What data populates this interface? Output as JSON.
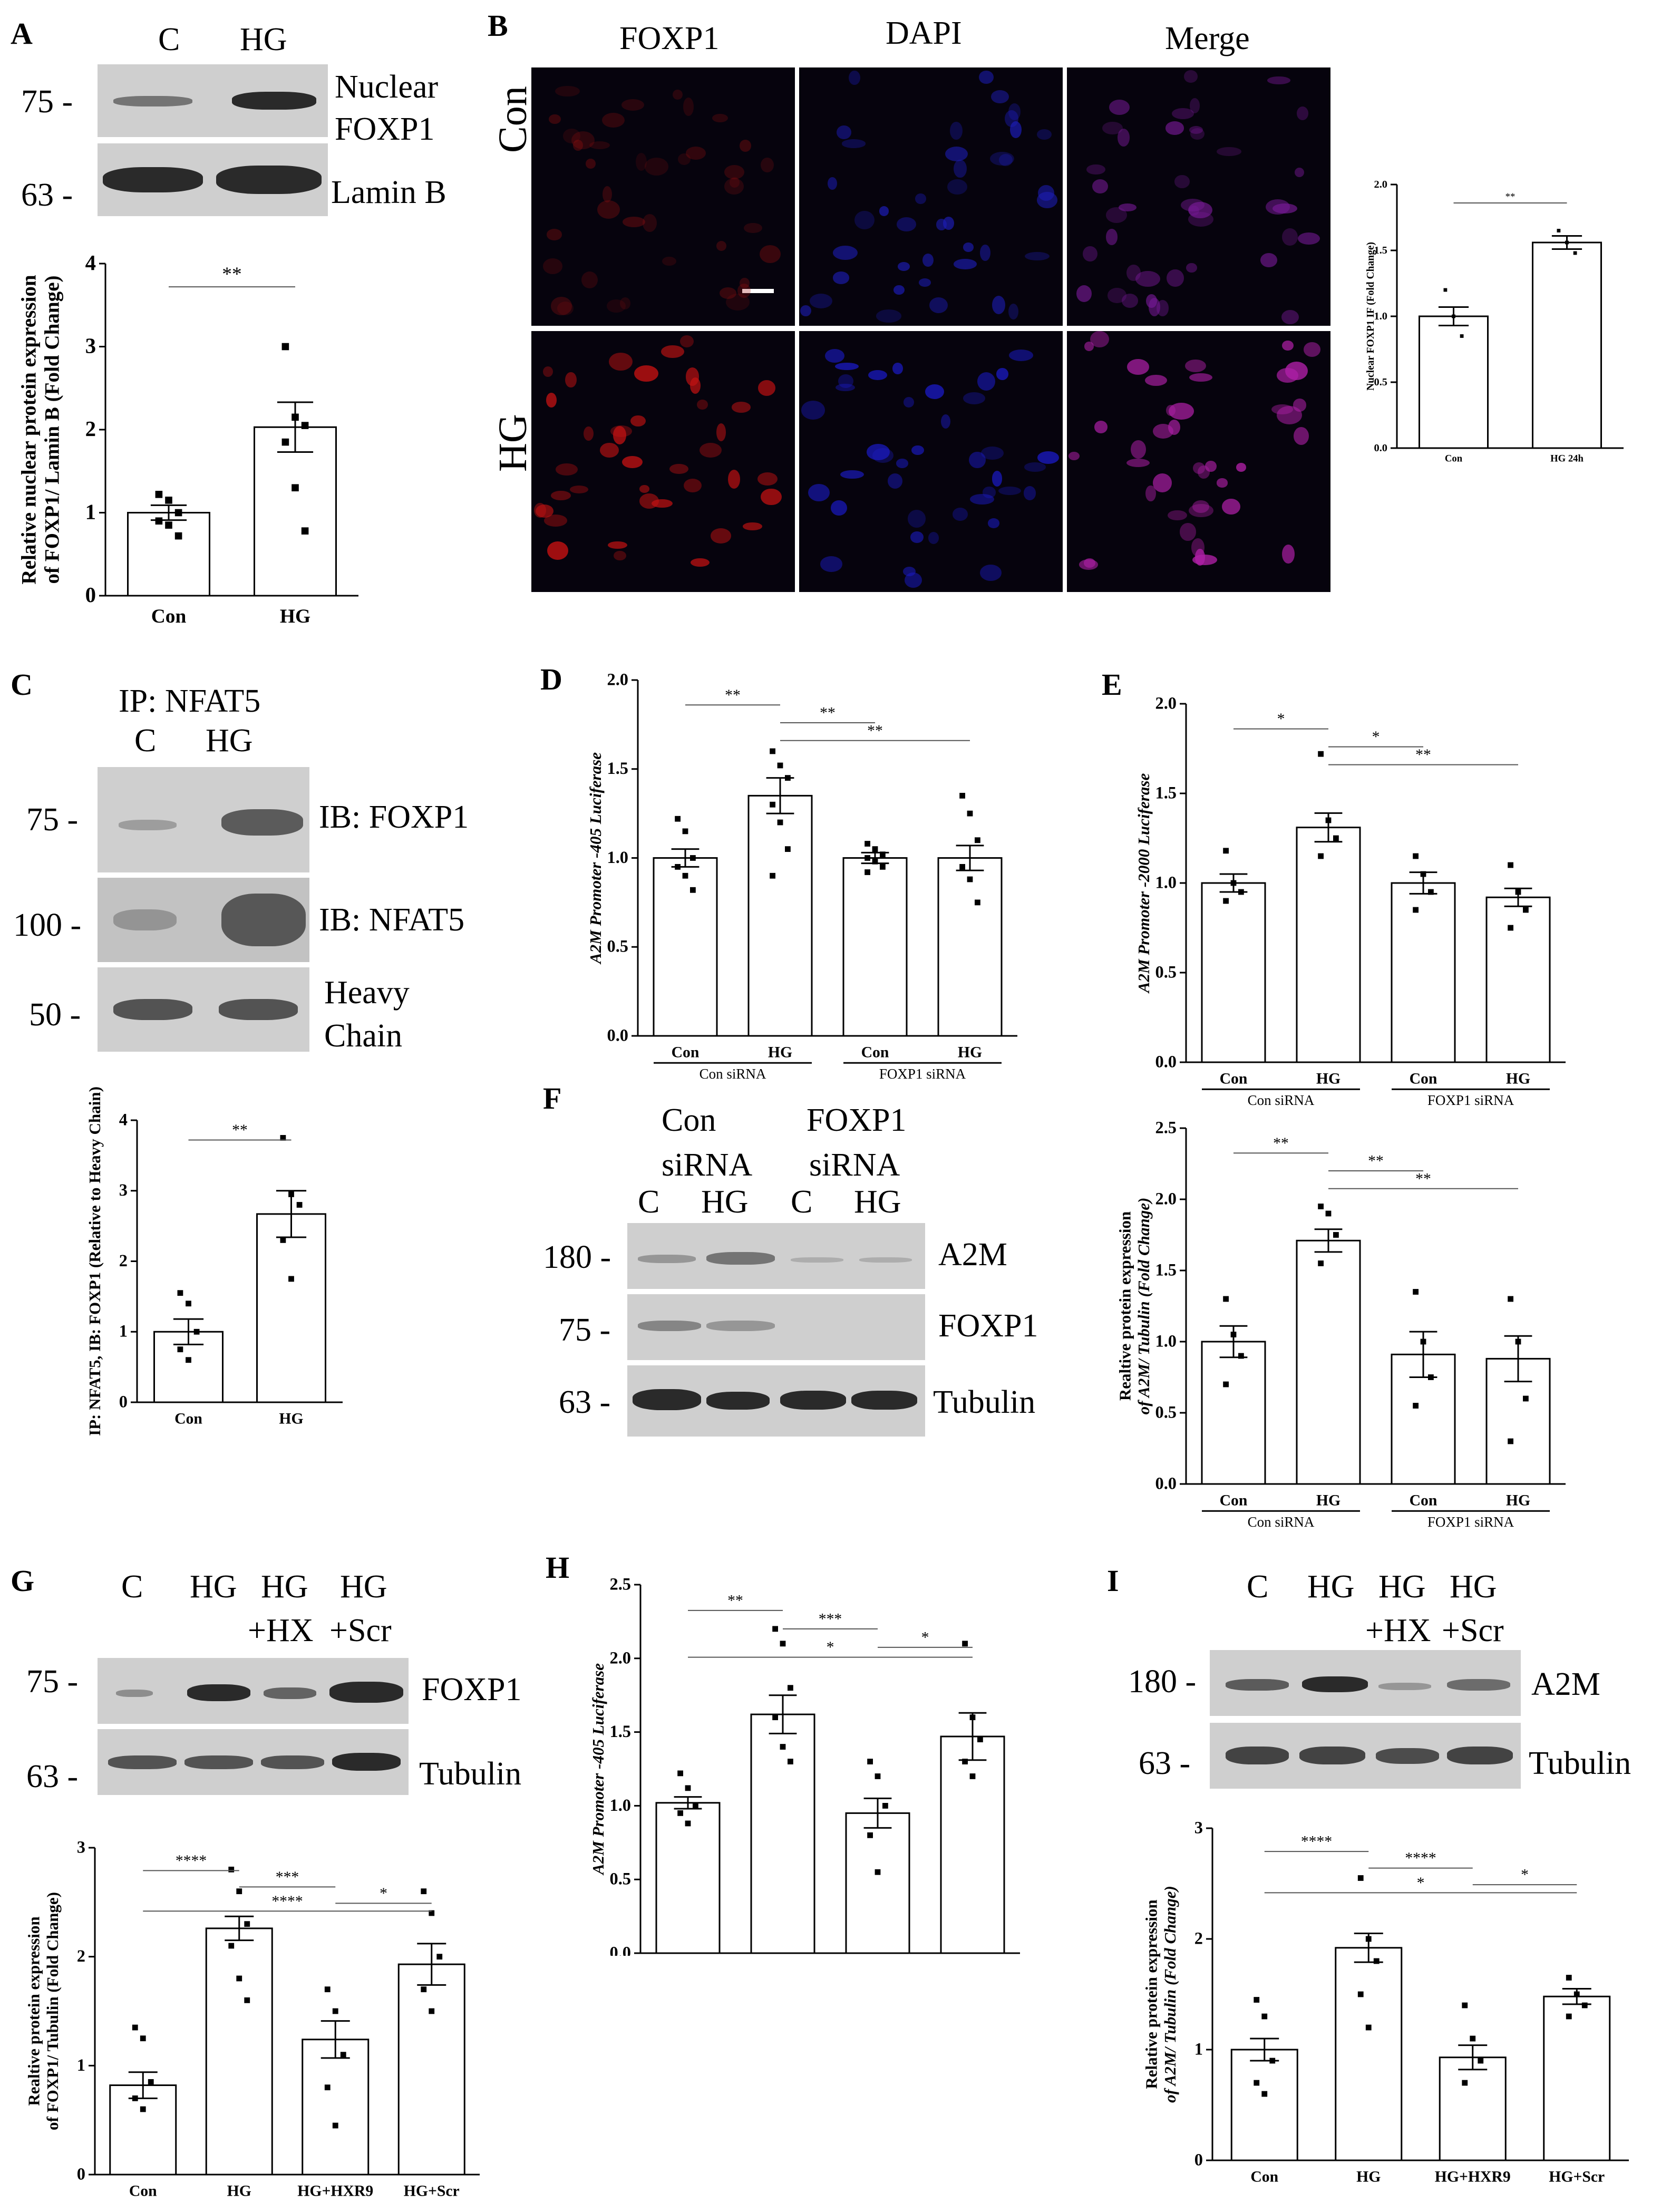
{
  "A": {
    "letter": "A",
    "lanes": [
      "C",
      "HG"
    ],
    "mw": [
      "75 -",
      "63 -"
    ],
    "labels": [
      "Nuclear",
      "FOXP1",
      "Lamin B"
    ],
    "chart_data": {
      "type": "bar",
      "categories": [
        "Con",
        "HG"
      ],
      "values": [
        1.0,
        2.03
      ],
      "sem": [
        0.09,
        0.3
      ],
      "points": [
        [
          1.22,
          1.15,
          1.0,
          0.9,
          0.85,
          0.72
        ],
        [
          3.0,
          2.15,
          2.05,
          1.85,
          1.3,
          0.78
        ]
      ],
      "ylabel": [
        "Relative nuclear protein expression",
        "of FOXP1/ Lamin B (Fold Change)"
      ],
      "ylim": [
        0,
        4
      ],
      "yticks": [
        "0",
        "1",
        "2",
        "3",
        "4"
      ],
      "sig": [
        {
          "from": 0,
          "to": 1,
          "label": "**"
        }
      ]
    }
  },
  "B": {
    "letter": "B",
    "columns": [
      "FOXP1",
      "DAPI",
      "Merge"
    ],
    "rows": [
      "Con",
      "HG"
    ],
    "chart_data": {
      "type": "bar",
      "categories": [
        "Con",
        "HG 24h"
      ],
      "values": [
        1.0,
        1.56
      ],
      "sem": [
        0.07,
        0.05
      ],
      "points": [
        [
          1.2,
          1.0,
          0.85
        ],
        [
          1.65,
          1.56,
          1.48
        ]
      ],
      "ylabel": [
        "Nuclear FOXP1 IF (Fold Change)"
      ],
      "ylim": [
        0,
        2.0
      ],
      "yticks": [
        "0.0",
        "0.5",
        "1.0",
        "1.5",
        "2.0"
      ],
      "sig": [
        {
          "from": 0,
          "to": 1,
          "label": "**"
        }
      ]
    }
  },
  "C": {
    "letter": "C",
    "ip": "IP: NFAT5",
    "lanes": [
      "C",
      "HG"
    ],
    "mw": [
      "75 -",
      "100 -",
      "50 -"
    ],
    "labels": [
      "IB: FOXP1",
      "IB: NFAT5",
      "Heavy",
      "Chain"
    ],
    "chart_data": {
      "type": "bar",
      "categories": [
        "Con",
        "HG"
      ],
      "values": [
        1.0,
        2.67
      ],
      "sem": [
        0.18,
        0.33
      ],
      "points": [
        [
          1.55,
          1.4,
          1.0,
          0.75,
          0.6
        ],
        [
          3.75,
          2.95,
          2.8,
          2.3,
          1.75
        ]
      ],
      "ylabel": [
        "IP: NFAT5, IB: FOXP1 (Relative to Heavy  Chain)"
      ],
      "ylim": [
        0,
        4
      ],
      "yticks": [
        "0",
        "1",
        "2",
        "3",
        "4"
      ],
      "sig": [
        {
          "from": 0,
          "to": 1,
          "label": "**"
        }
      ]
    }
  },
  "D": {
    "letter": "D",
    "chart_data": {
      "type": "bar",
      "categories": [
        "Con",
        "HG",
        "Con",
        "HG"
      ],
      "groups": [
        "Con siRNA",
        "FOXP1 siRNA"
      ],
      "values": [
        1.0,
        1.35,
        1.0,
        1.0
      ],
      "sem": [
        0.05,
        0.1,
        0.03,
        0.07
      ],
      "points": [
        [
          1.22,
          1.15,
          1.0,
          0.95,
          0.9,
          0.82
        ],
        [
          1.6,
          1.52,
          1.45,
          1.3,
          1.2,
          1.05,
          0.9
        ],
        [
          1.08,
          1.05,
          1.02,
          1.0,
          0.98,
          0.95,
          0.92
        ],
        [
          1.35,
          1.25,
          1.1,
          0.95,
          0.88,
          0.75
        ]
      ],
      "ylabel": [
        "A2M Promoter -405 Luciferase"
      ],
      "ylim": [
        0,
        2.0
      ],
      "yticks": [
        "0.0",
        "0.5",
        "1.0",
        "1.5",
        "2.0"
      ],
      "sig": [
        {
          "from": 0,
          "to": 1,
          "label": "**"
        },
        {
          "from": 1,
          "to": 2,
          "label": "**"
        },
        {
          "from": 1,
          "to": 3,
          "label": "**"
        }
      ]
    }
  },
  "E": {
    "letter": "E",
    "chart_data": {
      "type": "bar",
      "categories": [
        "Con",
        "HG",
        "Con",
        "HG"
      ],
      "groups": [
        "Con siRNA",
        "FOXP1 siRNA"
      ],
      "values": [
        1.0,
        1.31,
        1.0,
        0.92
      ],
      "sem": [
        0.05,
        0.08,
        0.06,
        0.05
      ],
      "points": [
        [
          1.18,
          1.0,
          0.95,
          0.9
        ],
        [
          1.72,
          1.35,
          1.25,
          1.15
        ],
        [
          1.15,
          1.05,
          0.95,
          0.85
        ],
        [
          1.1,
          0.95,
          0.85,
          0.75
        ]
      ],
      "ylabel": [
        "A2M Promoter -2000 Luciferase"
      ],
      "ylim": [
        0,
        2.0
      ],
      "yticks": [
        "0.0",
        "0.5",
        "1.0",
        "1.5",
        "2.0"
      ],
      "sig": [
        {
          "from": 0,
          "to": 1,
          "label": "*"
        },
        {
          "from": 1,
          "to": 2,
          "label": "*"
        },
        {
          "from": 1,
          "to": 3,
          "label": "**"
        }
      ]
    }
  },
  "F": {
    "letter": "F",
    "groups": [
      "Con",
      "siRNA",
      "FOXP1",
      "siRNA"
    ],
    "lanes": [
      "C",
      "HG",
      "C",
      "HG"
    ],
    "mw": [
      "180 -",
      "75 -",
      "63 -"
    ],
    "labels": [
      "A2M",
      "FOXP1",
      "Tubulin"
    ],
    "chart_data": {
      "type": "bar",
      "categories": [
        "Con",
        "HG",
        "Con",
        "HG"
      ],
      "groups": [
        "Con siRNA",
        "FOXP1 siRNA"
      ],
      "values": [
        1.0,
        1.71,
        0.91,
        0.88
      ],
      "sem": [
        0.11,
        0.08,
        0.16,
        0.16
      ],
      "points": [
        [
          1.3,
          1.05,
          0.9,
          0.7
        ],
        [
          1.95,
          1.9,
          1.75,
          1.55
        ],
        [
          1.35,
          1.0,
          0.75,
          0.55
        ],
        [
          1.3,
          1.0,
          0.6,
          0.3
        ]
      ],
      "ylabel": [
        "Realtive protein expression",
        "of A2M/ Tubulin (Fold Change)"
      ],
      "ylim": [
        0,
        2.5
      ],
      "yticks": [
        "0.0",
        "0.5",
        "1.0",
        "1.5",
        "2.0",
        "2.5"
      ],
      "sig": [
        {
          "from": 0,
          "to": 1,
          "label": "**"
        },
        {
          "from": 1,
          "to": 2,
          "label": "**"
        },
        {
          "from": 1,
          "to": 3,
          "label": "**"
        }
      ]
    }
  },
  "G": {
    "letter": "G",
    "lanes": [
      "C",
      "HG",
      "HG",
      "HG"
    ],
    "lanes2": [
      "+HX",
      "+Scr"
    ],
    "mw": [
      "75 -",
      "63 -"
    ],
    "labels": [
      "FOXP1",
      "Tubulin"
    ],
    "chart_data": {
      "type": "bar",
      "categories": [
        "Con",
        "HG",
        "HG+HXR9",
        "HG+Scr"
      ],
      "values": [
        0.82,
        2.26,
        1.24,
        1.93
      ],
      "sem": [
        0.12,
        0.11,
        0.17,
        0.19
      ],
      "points": [
        [
          1.35,
          1.25,
          0.85,
          0.7,
          0.6
        ],
        [
          2.8,
          2.6,
          2.3,
          2.1,
          1.8,
          1.6
        ],
        [
          1.7,
          1.5,
          1.1,
          0.8,
          0.45
        ],
        [
          2.6,
          2.4,
          2.0,
          1.7,
          1.5
        ]
      ],
      "ylabel": [
        "Realtive protein expression",
        "of FOXP1/ Tubulin (Fold Change)"
      ],
      "ylim": [
        0,
        3
      ],
      "yticks": [
        "0",
        "1",
        "2",
        "3"
      ],
      "sig": [
        {
          "from": 0,
          "to": 1,
          "label": "****"
        },
        {
          "from": 1,
          "to": 2,
          "label": "***"
        },
        {
          "from": 2,
          "to": 3,
          "label": "*"
        },
        {
          "from": 0,
          "to": 3,
          "label": "****"
        }
      ]
    }
  },
  "H": {
    "letter": "H",
    "chart_data": {
      "type": "bar",
      "categories": [
        "Con",
        "HG",
        "HG+HXR9",
        "HG+Scr"
      ],
      "values": [
        1.02,
        1.62,
        0.95,
        1.47
      ],
      "sem": [
        0.04,
        0.13,
        0.1,
        0.16
      ],
      "points": [
        [
          1.22,
          1.12,
          1.0,
          0.95,
          0.88
        ],
        [
          2.2,
          2.1,
          1.8,
          1.6,
          1.4,
          1.3
        ],
        [
          1.3,
          1.2,
          1.0,
          0.8,
          0.55
        ],
        [
          2.1,
          1.6,
          1.45,
          1.3,
          1.2
        ]
      ],
      "ylabel": [
        "A2M Promoter -405 Luciferase"
      ],
      "ylim": [
        0,
        2.5
      ],
      "yticks": [
        "0.0",
        "0.5",
        "1.0",
        "1.5",
        "2.0",
        "2.5"
      ],
      "sig": [
        {
          "from": 0,
          "to": 1,
          "label": "**"
        },
        {
          "from": 1,
          "to": 2,
          "label": "***"
        },
        {
          "from": 2,
          "to": 3,
          "label": "*"
        },
        {
          "from": 0,
          "to": 3,
          "label": "*"
        }
      ]
    }
  },
  "I": {
    "letter": "I",
    "lanes": [
      "C",
      "HG",
      "HG",
      "HG"
    ],
    "lanes2": [
      "+HX",
      "+Scr"
    ],
    "mw": [
      "180 -",
      "63 -"
    ],
    "labels": [
      "A2M",
      "Tubulin"
    ],
    "chart_data": {
      "type": "bar",
      "categories": [
        "Con",
        "HG",
        "HG+HXR9",
        "HG+Scr"
      ],
      "values": [
        1.0,
        1.92,
        0.93,
        1.48
      ],
      "sem": [
        0.1,
        0.13,
        0.11,
        0.07
      ],
      "points": [
        [
          1.45,
          1.3,
          0.9,
          0.7,
          0.6
        ],
        [
          2.55,
          2.0,
          1.8,
          1.5,
          1.2
        ],
        [
          1.4,
          1.1,
          0.9,
          0.7
        ],
        [
          1.65,
          1.5,
          1.4,
          1.3
        ]
      ],
      "ylabel": [
        "Relative protein expression",
        "of A2M/ Tubulin (Fold Change)"
      ],
      "ylim": [
        0,
        3
      ],
      "yticks": [
        "0",
        "1",
        "2",
        "3"
      ],
      "sig": [
        {
          "from": 0,
          "to": 1,
          "label": "****"
        },
        {
          "from": 1,
          "to": 2,
          "label": "****"
        },
        {
          "from": 2,
          "to": 3,
          "label": "*"
        },
        {
          "from": 0,
          "to": 3,
          "label": "*"
        }
      ]
    }
  }
}
